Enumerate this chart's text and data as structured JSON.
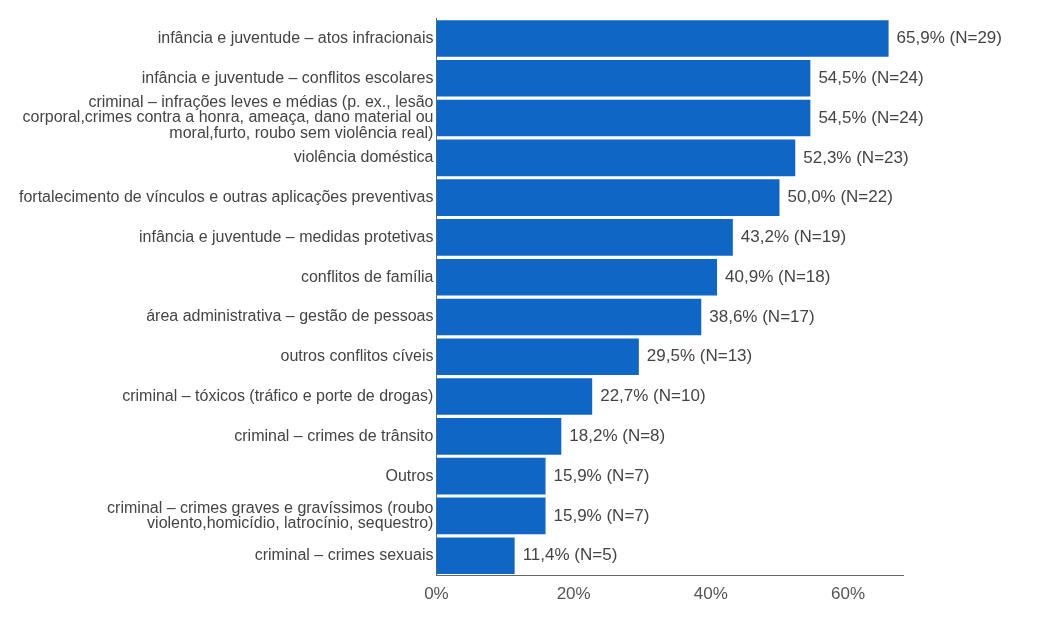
{
  "chart_data": {
    "type": "bar",
    "orientation": "horizontal",
    "categories": [
      "infância e juventude – atos infracionais",
      "infância e juventude – conflitos escolares",
      "criminal – infrações leves e médias (p. ex., lesão corporal,crimes contra a honra, ameaça, dano material ou moral,furto, roubo sem violência real)",
      "violência doméstica",
      "fortalecimento de vínculos e outras aplicações preventivas",
      "infância e juventude – medidas protetivas",
      "conflitos de família",
      "área administrativa – gestão de pessoas",
      "outros conflitos cíveis",
      "criminal – tóxicos (tráfico e porte de drogas)",
      "criminal – crimes de trânsito",
      "Outros",
      "criminal – crimes graves e gravíssimos (roubo violento,homicídio, latrocínio, sequestro)",
      "criminal – crimes sexuais"
    ],
    "values": [
      65.9,
      54.5,
      54.5,
      52.3,
      50.0,
      43.2,
      40.9,
      38.6,
      29.5,
      22.7,
      18.2,
      15.9,
      15.9,
      11.4
    ],
    "value_labels": [
      "65,9% (N=29)",
      "54,5% (N=24)",
      "54,5% (N=24)",
      "52,3% (N=23)",
      "50,0% (N=22)",
      "43,2% (N=19)",
      "40,9% (N=18)",
      "38,6% (N=17)",
      "29,5% (N=13)",
      "22,7% (N=10)",
      "18,2% (N=8)",
      "15,9% (N=7)",
      "15,9% (N=7)",
      "11,4% (N=5)"
    ],
    "color": "#0f66c4",
    "xlim": [
      0,
      68
    ],
    "xticks": [
      {
        "value": 0,
        "label": "0%"
      },
      {
        "value": 20,
        "label": "20%"
      },
      {
        "value": 40,
        "label": "40%"
      },
      {
        "value": 60,
        "label": "60%"
      }
    ],
    "grid": false,
    "legend": false
  }
}
